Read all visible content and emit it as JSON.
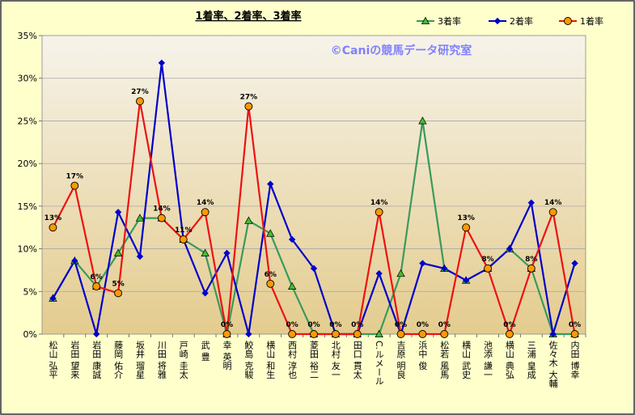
{
  "chart_data": {
    "type": "line",
    "title": "1着率、2着率、3着率",
    "watermark": "©Caniの競馬データ研究室",
    "ylim": [
      0,
      35
    ],
    "yticks": [
      "0%",
      "5%",
      "10%",
      "15%",
      "20%",
      "25%",
      "30%",
      "35%"
    ],
    "legend_position": "top-right",
    "grid": true,
    "categories": [
      "松山 弘平",
      "岩田 望来",
      "岩田 康誠",
      "藤岡 佑介",
      "坂井 瑠星",
      "川田 将雅",
      "戸崎 圭太",
      "武 豊",
      "幸 英明",
      "鮫島 克駿",
      "横山 和生",
      "西村 淳也",
      "菱田 裕二",
      "北村 友一",
      "田口 貫太",
      "C.ルメール",
      "吉原 明良",
      "浜中 俊",
      "松若 風馬",
      "横山 武史",
      "池添 謙一",
      "横山 典弘",
      "三浦 皇成",
      "佐々木 大輔",
      "内田 博幸"
    ],
    "series": [
      {
        "name": "3着率",
        "color": "#3a9a5b",
        "marker": "triangle",
        "marker_fill": "#44bb33",
        "values": [
          4.2,
          8.6,
          5.6,
          9.5,
          13.6,
          13.6,
          11.1,
          9.5,
          0,
          13.3,
          11.8,
          5.6,
          0,
          0,
          0,
          0,
          7.1,
          25.0,
          7.7,
          6.3,
          7.7,
          10.0,
          7.7,
          0,
          0
        ]
      },
      {
        "name": "2着率",
        "color": "#0000cc",
        "marker": "diamond",
        "marker_fill": "#0000cc",
        "values": [
          4.2,
          8.6,
          0,
          14.3,
          9.1,
          31.8,
          11.1,
          4.8,
          9.5,
          0,
          17.6,
          11.1,
          7.7,
          0,
          0,
          7.1,
          0,
          8.3,
          7.7,
          6.3,
          7.7,
          10.0,
          15.4,
          0,
          8.3
        ]
      },
      {
        "name": "1着率",
        "color": "#ee1111",
        "marker": "circle",
        "marker_fill": "#ff9900",
        "values": [
          12.5,
          17.4,
          5.6,
          4.8,
          27.3,
          13.6,
          11.1,
          14.3,
          0,
          26.7,
          5.9,
          0,
          0,
          0,
          0,
          14.3,
          0,
          0,
          0,
          12.5,
          7.7,
          0,
          7.7,
          14.3,
          0
        ],
        "data_labels": [
          "13%",
          "17%",
          "6%",
          "5%",
          "27%",
          "14%",
          "11%",
          "14%",
          "0%",
          "27%",
          "6%",
          "0%",
          "0%",
          "0%",
          "0%",
          "14%",
          "0%",
          "0%",
          "0%",
          "13%",
          "8%",
          "0%",
          "8%",
          "14%",
          "0%"
        ]
      }
    ]
  },
  "colors": {
    "frame_bg": "#ffffcc",
    "plot_top": "#f6f3ea",
    "plot_bottom": "#e4cc8e",
    "watermark": "#8080ff"
  }
}
